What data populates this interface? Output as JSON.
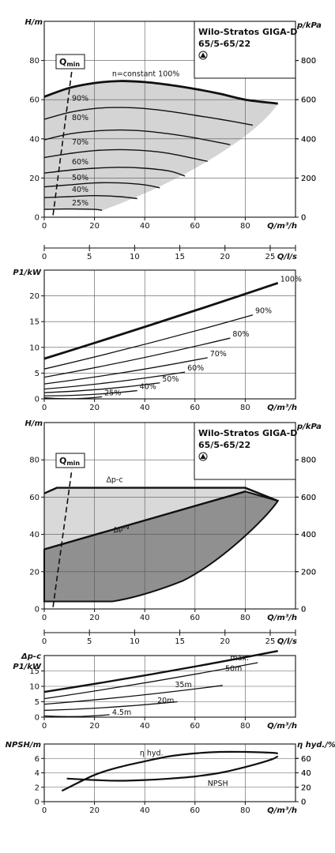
{
  "chart_data": [
    {
      "type": "line",
      "title": "Wilo-Stratos GIGA-D 65/5-65/22",
      "ylabel": "H/m",
      "ylabel2": "p/kPa",
      "xlabel": "Q/m³/h",
      "xlim": [
        0,
        100
      ],
      "ylim": [
        0,
        100
      ],
      "xticks": [
        "0",
        "20",
        "40",
        "60",
        "80"
      ],
      "yticks": [
        "0",
        "20",
        "40",
        "60",
        "80"
      ],
      "y2ticks": [
        "0",
        "200",
        "400",
        "600",
        "800"
      ],
      "qmin_label": "Qmin",
      "series": [
        {
          "name": "n=constant 100%",
          "x": [
            0,
            10,
            20,
            30,
            40,
            50,
            60,
            70,
            80,
            93
          ],
          "y": [
            61.5,
            66,
            68.5,
            69.5,
            69,
            67.5,
            65.5,
            63,
            60,
            58
          ]
        },
        {
          "name": "90%",
          "x": [
            0,
            10,
            20,
            30,
            40,
            50,
            60,
            70,
            83
          ],
          "y": [
            50,
            53.5,
            55.5,
            56,
            55.5,
            54,
            52,
            50,
            47
          ]
        },
        {
          "name": "80%",
          "x": [
            0,
            10,
            20,
            30,
            40,
            50,
            60,
            74
          ],
          "y": [
            39.5,
            42.5,
            44,
            44.5,
            44,
            42.5,
            40.5,
            37
          ]
        },
        {
          "name": "70%",
          "x": [
            0,
            10,
            20,
            30,
            40,
            50,
            65
          ],
          "y": [
            30.5,
            32.5,
            34,
            34.5,
            34,
            32.5,
            28.5
          ]
        },
        {
          "name": "60%",
          "x": [
            0,
            10,
            20,
            30,
            40,
            50,
            56
          ],
          "y": [
            22.5,
            24,
            25,
            25.5,
            25,
            23.5,
            21
          ]
        },
        {
          "name": "50%",
          "x": [
            0,
            10,
            20,
            30,
            40,
            46
          ],
          "y": [
            15.5,
            16.5,
            17.5,
            17.5,
            16.5,
            15
          ]
        },
        {
          "name": "40%",
          "x": [
            0,
            10,
            20,
            30,
            37
          ],
          "y": [
            10,
            10.5,
            11,
            10.5,
            9.5
          ]
        },
        {
          "name": "25%",
          "x": [
            0,
            10,
            20,
            23
          ],
          "y": [
            4,
            4.2,
            4,
            3.5
          ]
        }
      ],
      "qmin": {
        "x": [
          3.5,
          11
        ],
        "y": [
          1,
          75
        ]
      }
    },
    {
      "type": "axis",
      "xlabel": "Q/l/s",
      "xlim": [
        0,
        27.8
      ],
      "xticks": [
        "0",
        "5",
        "10",
        "15",
        "20",
        "25"
      ]
    },
    {
      "type": "line",
      "ylabel": "P1/kW",
      "xlabel": "Q/m³/h",
      "xlim": [
        0,
        100
      ],
      "ylim": [
        0,
        25
      ],
      "xticks": [
        "0",
        "20",
        "40",
        "60",
        "80"
      ],
      "yticks": [
        "0",
        "5",
        "10",
        "15",
        "20"
      ],
      "series": [
        {
          "name": "100%",
          "x": [
            0,
            93
          ],
          "y": [
            7.8,
            22.5
          ]
        },
        {
          "name": "90%",
          "x": [
            0,
            83
          ],
          "y": [
            5.8,
            16.3
          ]
        },
        {
          "name": "80%",
          "x": [
            0,
            74
          ],
          "y": [
            4.2,
            11.8
          ]
        },
        {
          "name": "70%",
          "x": [
            0,
            65
          ],
          "y": [
            2.9,
            8.0
          ]
        },
        {
          "name": "60%",
          "x": [
            0,
            56
          ],
          "y": [
            1.9,
            5.2
          ]
        },
        {
          "name": "50%",
          "x": [
            0,
            46
          ],
          "y": [
            1.2,
            3.1
          ]
        },
        {
          "name": "40%",
          "x": [
            0,
            37
          ],
          "y": [
            0.6,
            1.6
          ]
        },
        {
          "name": "25%",
          "x": [
            0,
            23
          ],
          "y": [
            0.2,
            0.4
          ]
        }
      ]
    },
    {
      "type": "area",
      "title": "Wilo-Stratos GIGA-D 65/5-65/22",
      "ylabel": "H/m",
      "ylabel2": "p/kPa",
      "xlabel": "Q/m³/h",
      "xlim": [
        0,
        100
      ],
      "ylim": [
        0,
        100
      ],
      "xticks": [
        "0",
        "20",
        "40",
        "60",
        "80"
      ],
      "yticks": [
        "0",
        "20",
        "40",
        "60",
        "80"
      ],
      "y2ticks": [
        "0",
        "200",
        "400",
        "600",
        "800"
      ],
      "qmin_label": "Qmin",
      "series": [
        {
          "name": "Δp-c",
          "x": [
            0,
            5,
            80,
            93,
            80,
            0
          ],
          "y": [
            62,
            65,
            65,
            58,
            63,
            32
          ]
        },
        {
          "name": "Δp-v",
          "x": [
            0,
            80,
            93,
            85,
            70,
            55,
            40,
            27,
            0
          ],
          "y": [
            32,
            63,
            58,
            42,
            26,
            15,
            9,
            4,
            4
          ]
        }
      ],
      "qmin": {
        "x": [
          3.5,
          11
        ],
        "y": [
          1,
          75
        ]
      }
    },
    {
      "type": "axis",
      "xlabel": "Q/l/s",
      "xlim": [
        0,
        27.8
      ],
      "xticks": [
        "0",
        "5",
        "10",
        "15",
        "20",
        "25"
      ]
    },
    {
      "type": "line",
      "ylabel": "Δp-c",
      "ylabel2": "P1/kW",
      "xlabel": "Q/m³/h",
      "xlim": [
        0,
        100
      ],
      "ylim": [
        0,
        20
      ],
      "xticks": [
        "0",
        "20",
        "40",
        "60",
        "80"
      ],
      "yticks": [
        "0",
        "5",
        "10",
        "15"
      ],
      "series": [
        {
          "name": "max.",
          "x": [
            0,
            93
          ],
          "y": [
            8.2,
            21.5
          ]
        },
        {
          "name": "50m",
          "x": [
            0,
            85
          ],
          "y": [
            6.0,
            17.7
          ]
        },
        {
          "name": "35m",
          "x": [
            0,
            71
          ],
          "y": [
            4.2,
            10.3
          ]
        },
        {
          "name": "20m",
          "x": [
            0,
            53
          ],
          "y": [
            2.2,
            5.0
          ]
        },
        {
          "name": "4.5m",
          "x": [
            0,
            26
          ],
          "y": [
            0.4,
            0.8
          ]
        }
      ]
    },
    {
      "type": "line",
      "ylabel": "NPSH/m",
      "ylabel2": "η hyd./%",
      "xlabel": "Q/m³/h",
      "xlim": [
        0,
        100
      ],
      "ylim": [
        0,
        8
      ],
      "xticks": [
        "0",
        "20",
        "40",
        "60",
        "80"
      ],
      "yticks": [
        "0",
        "2",
        "4",
        "6"
      ],
      "y2ticks": [
        "0",
        "20",
        "40",
        "60"
      ],
      "series": [
        {
          "name": "η hyd.",
          "x": [
            7,
            20,
            30,
            40,
            50,
            60,
            70,
            80,
            90,
            93
          ],
          "y": [
            15,
            37,
            48,
            56,
            63,
            67,
            69,
            69,
            68,
            67
          ]
        },
        {
          "name": "NPSH",
          "x": [
            9,
            20,
            30,
            40,
            50,
            60,
            70,
            80,
            90,
            93
          ],
          "y": [
            3.2,
            3.0,
            2.9,
            3.0,
            3.2,
            3.5,
            4.0,
            4.8,
            5.8,
            6.3
          ]
        }
      ]
    }
  ]
}
